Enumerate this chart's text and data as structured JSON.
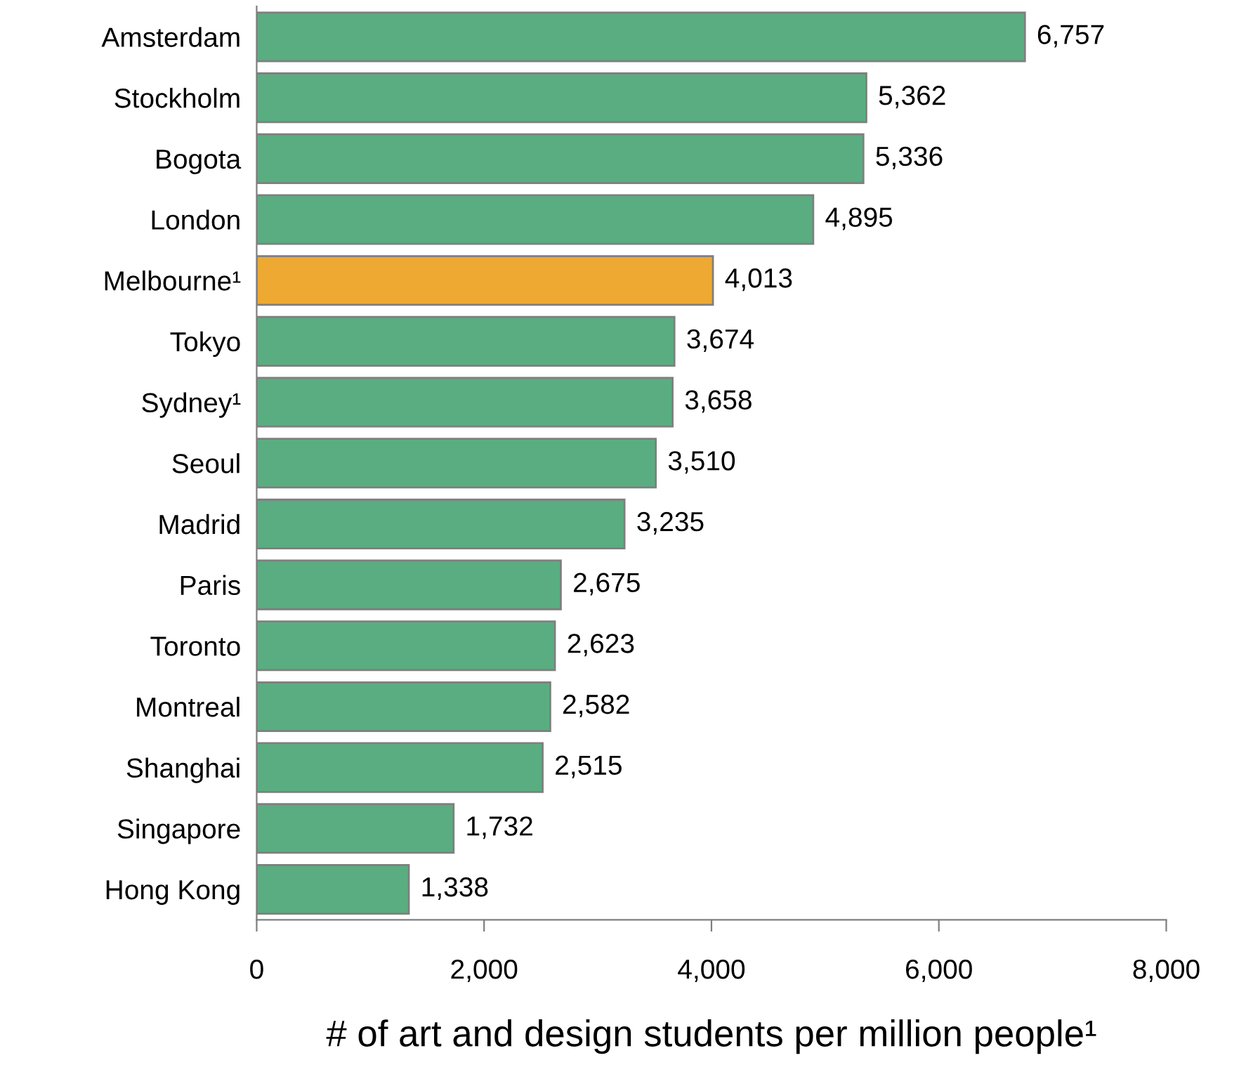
{
  "chart_data": {
    "type": "bar",
    "orientation": "horizontal",
    "xlabel": "# of art and design students per million people¹",
    "categories": [
      "Amsterdam",
      "Stockholm",
      "Bogota",
      "London",
      "Melbourne¹",
      "Tokyo",
      "Sydney¹",
      "Seoul",
      "Madrid",
      "Paris",
      "Toronto",
      "Montreal",
      "Shanghai",
      "Singapore",
      "Hong Kong"
    ],
    "values": [
      6757,
      5362,
      5336,
      4895,
      4013,
      3674,
      3658,
      3510,
      3235,
      2675,
      2623,
      2582,
      2515,
      1732,
      1338
    ],
    "value_labels": [
      "6,757",
      "5,362",
      "5,336",
      "4,895",
      "4,013",
      "3,674",
      "3,658",
      "3,510",
      "3,235",
      "2,675",
      "2,623",
      "2,582",
      "2,515",
      "1,732",
      "1,338"
    ],
    "colors": [
      "#5aad80",
      "#5aad80",
      "#5aad80",
      "#5aad80",
      "#eda932",
      "#5aad80",
      "#5aad80",
      "#5aad80",
      "#5aad80",
      "#5aad80",
      "#5aad80",
      "#5aad80",
      "#5aad80",
      "#5aad80",
      "#5aad80"
    ],
    "xlim": [
      0,
      8000
    ],
    "xticks": [
      0,
      {
        "value": 2000,
        "label": "2,000"
      },
      {
        "value": 4000,
        "label": "4,000"
      },
      {
        "value": 6000,
        "label": "6,000"
      },
      {
        "value": 8000,
        "label": "8,000"
      }
    ],
    "grid": false
  }
}
